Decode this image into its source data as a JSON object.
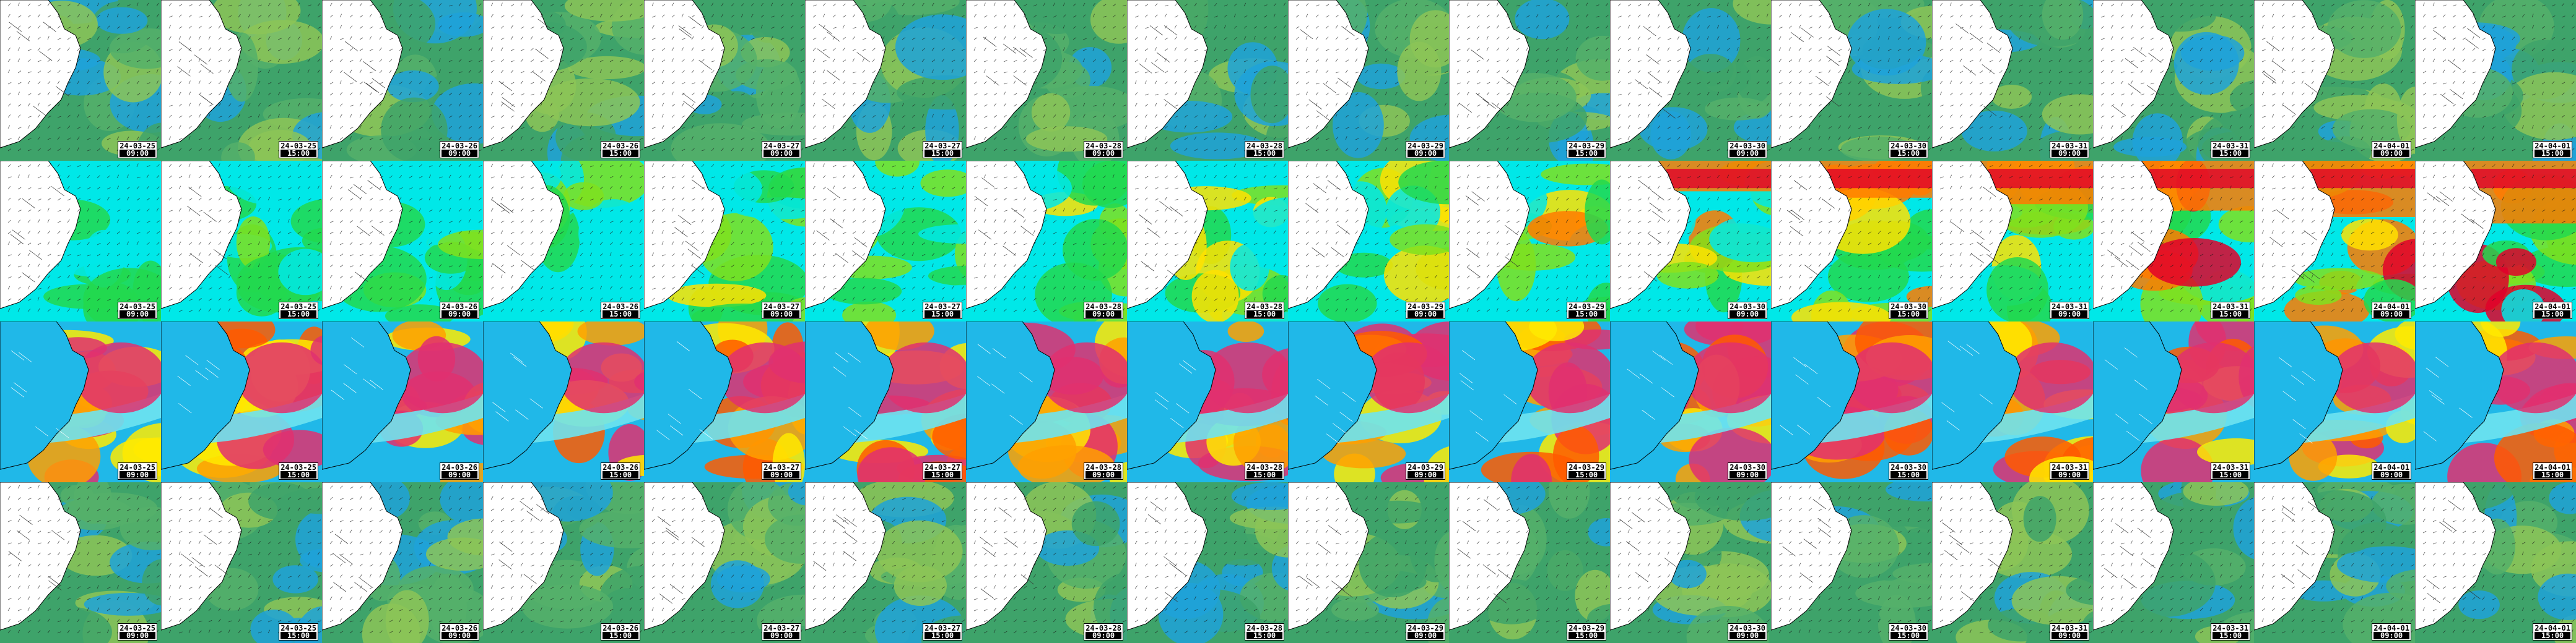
{
  "timesteps": [
    {
      "date": "24-03-25",
      "hour": "09:00"
    },
    {
      "date": "24-03-25",
      "hour": "15:00"
    },
    {
      "date": "24-03-26",
      "hour": "09:00"
    },
    {
      "date": "24-03-26",
      "hour": "15:00"
    },
    {
      "date": "24-03-27",
      "hour": "09:00"
    },
    {
      "date": "24-03-27",
      "hour": "15:00"
    },
    {
      "date": "24-03-28",
      "hour": "09:00"
    },
    {
      "date": "24-03-28",
      "hour": "15:00"
    },
    {
      "date": "24-03-29",
      "hour": "09:00"
    },
    {
      "date": "24-03-29",
      "hour": "15:00"
    },
    {
      "date": "24-03-30",
      "hour": "09:00"
    },
    {
      "date": "24-03-30",
      "hour": "15:00"
    },
    {
      "date": "24-03-31",
      "hour": "09:00"
    },
    {
      "date": "24-03-31",
      "hour": "15:00"
    },
    {
      "date": "24-04-01",
      "hour": "09:00"
    },
    {
      "date": "24-04-01",
      "hour": "15:00"
    }
  ],
  "rows": [
    {
      "name": "wind-row-1",
      "palette": [
        "#3ea36a",
        "#55b06a",
        "#8cc457",
        "#1fa2d9"
      ]
    },
    {
      "name": "wind-row-2",
      "palette": [
        "#00e8e8",
        "#22d84f",
        "#7fe01f",
        "#ffe200",
        "#ff7a00",
        "#e0002a"
      ]
    },
    {
      "name": "field-row-3",
      "palette": [
        "#20b8e8",
        "#6ee3f0",
        "#ffea00",
        "#ffa000",
        "#ff5a00",
        "#e03070"
      ]
    },
    {
      "name": "wind-row-4",
      "palette": [
        "#3ea36a",
        "#55b06a",
        "#8cc457",
        "#1fa2d9"
      ]
    }
  ],
  "colors": {
    "land": "#ffffff",
    "coast": "#000000",
    "arrow": "#1a1a1a"
  }
}
